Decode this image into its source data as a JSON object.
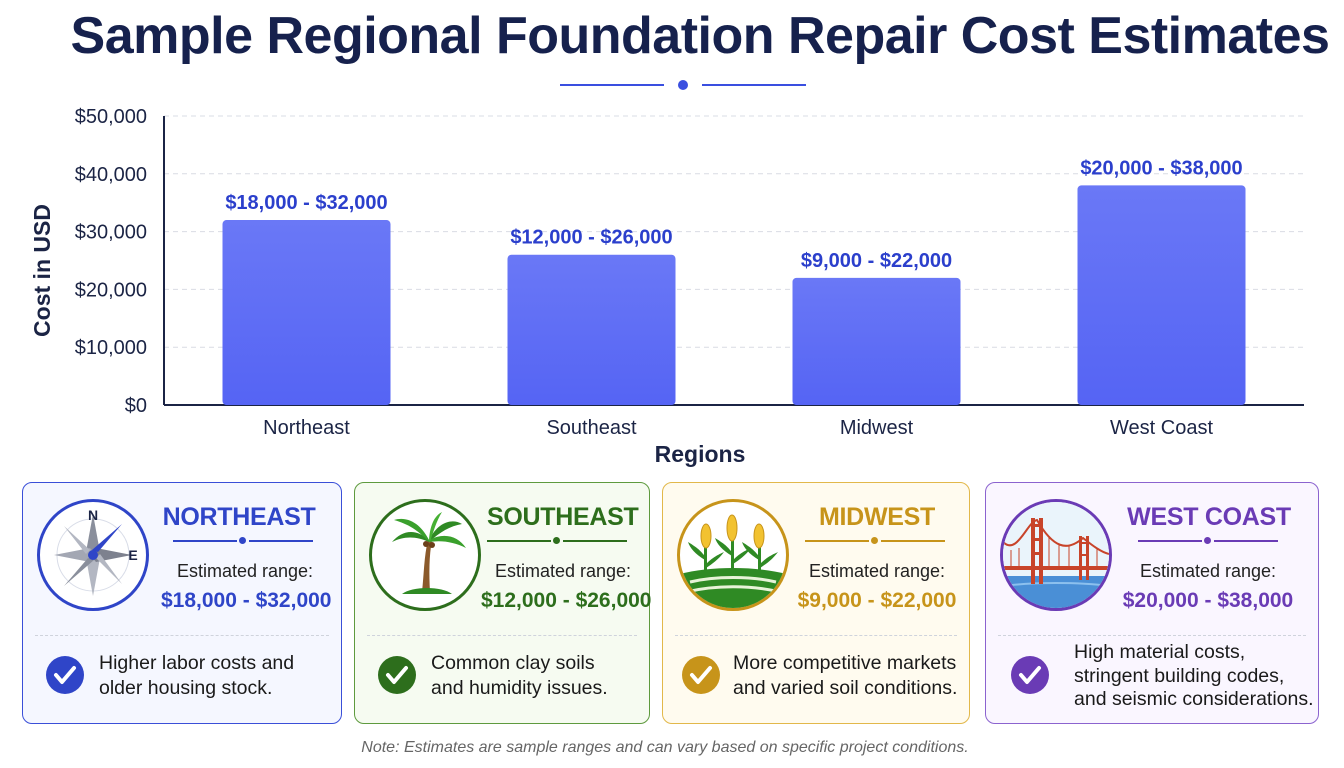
{
  "title": "Sample Regional Foundation Repair Cost Estimates",
  "colors": {
    "bar": "#5564f4",
    "bar_label": "#2b3fcc",
    "northeast": "#2f45c8",
    "southeast": "#2d6e1c",
    "midwest": "#c7941a",
    "west_coast": "#6a3bb5"
  },
  "chart_data": {
    "type": "bar",
    "categories": [
      "Northeast",
      "Southeast",
      "Midwest",
      "West Coast"
    ],
    "values": [
      32000,
      26000,
      22000,
      38000
    ],
    "ranges": [
      [
        18000,
        32000
      ],
      [
        12000,
        26000
      ],
      [
        9000,
        22000
      ],
      [
        20000,
        38000
      ]
    ],
    "data_labels": [
      "$18,000 - $32,000",
      "$12,000 - $26,000",
      "$9,000 - $22,000",
      "$20,000 - $38,000"
    ],
    "xlabel": "Regions",
    "ylabel": "Cost in USD",
    "ylim": [
      0,
      50000
    ],
    "yticks": [
      0,
      10000,
      20000,
      30000,
      40000,
      50000
    ],
    "ytick_labels": [
      "$0",
      "$10,000",
      "$20,000",
      "$30,000",
      "$40,000",
      "$50,000"
    ],
    "grid": true,
    "legend": "none"
  },
  "cards": [
    {
      "name": "NORTHEAST",
      "icon": "compass-icon",
      "range_label": "Estimated range:",
      "range": "$18,000 - $32,000",
      "note_lines": [
        "Higher labor costs and",
        "older housing stock."
      ],
      "compass_n": "N",
      "compass_e": "E"
    },
    {
      "name": "SOUTHEAST",
      "icon": "palm-tree-icon",
      "range_label": "Estimated range:",
      "range": "$12,000 - $26,000",
      "note_lines": [
        "Common clay soils",
        "and humidity issues."
      ]
    },
    {
      "name": "MIDWEST",
      "icon": "corn-field-icon",
      "range_label": "Estimated range:",
      "range": "$9,000 - $22,000",
      "note_lines": [
        "More competitive markets",
        "and varied soil conditions."
      ]
    },
    {
      "name": "WEST COAST",
      "icon": "golden-gate-bridge-icon",
      "range_label": "Estimated range:",
      "range": "$20,000 - $38,000",
      "note_lines": [
        "High material costs,",
        "stringent building codes,",
        "and seismic considerations."
      ]
    }
  ],
  "footnote": "Note: Estimates are sample ranges and can vary based on specific project conditions."
}
